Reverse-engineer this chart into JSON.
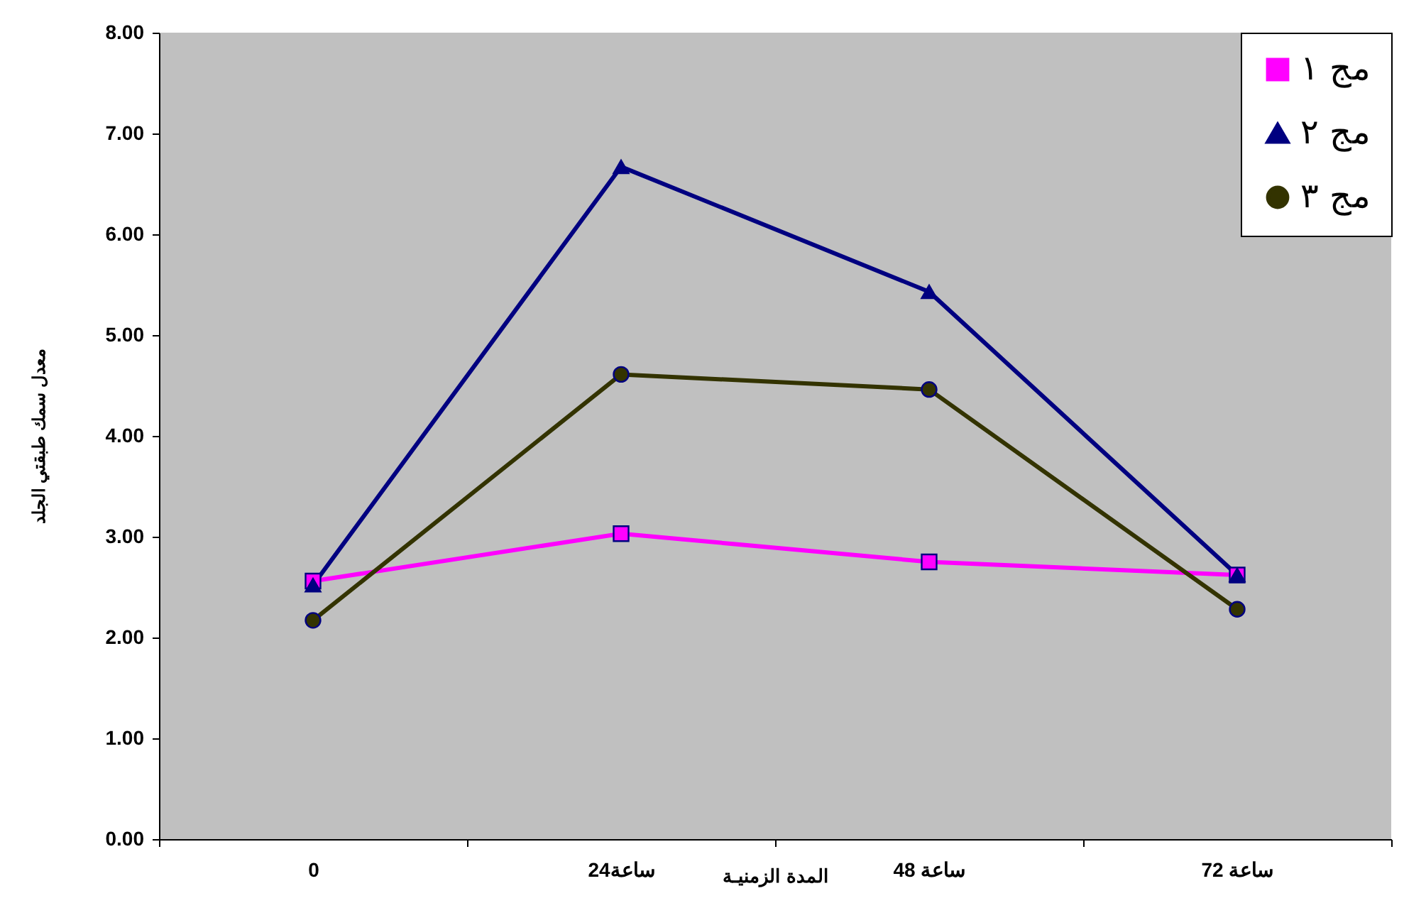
{
  "chart_data": {
    "type": "line",
    "xlabel": "المدة الزمنيـة",
    "ylabel": "معدل سمك طبقتي الجلد",
    "categories": [
      "0",
      "24ساعة",
      "ساعة 48",
      "ساعة 72"
    ],
    "ylim": [
      0,
      8
    ],
    "yticks": [
      {
        "value": 0,
        "label": "0.00"
      },
      {
        "value": 1,
        "label": "1.00"
      },
      {
        "value": 2,
        "label": "2.00"
      },
      {
        "value": 3,
        "label": "3.00"
      },
      {
        "value": 4,
        "label": "4.00"
      },
      {
        "value": 5,
        "label": "5.00"
      },
      {
        "value": 6,
        "label": "6.00"
      },
      {
        "value": 7,
        "label": "7.00"
      },
      {
        "value": 8,
        "label": "8.00"
      }
    ],
    "grid": false,
    "legend": "top right",
    "line_style": "solid",
    "series": [
      {
        "name": "مج ١",
        "color": "#ff00ff",
        "marker": "square",
        "values": [
          2.56,
          3.03,
          2.75,
          2.62
        ]
      },
      {
        "name": "مج ٢",
        "color": "#000080",
        "marker": "triangle",
        "values": [
          2.52,
          6.67,
          5.43,
          2.62
        ]
      },
      {
        "name": "مج ٣",
        "color": "#333300",
        "marker": "circle",
        "values": [
          2.17,
          4.61,
          4.46,
          2.28
        ]
      }
    ]
  }
}
